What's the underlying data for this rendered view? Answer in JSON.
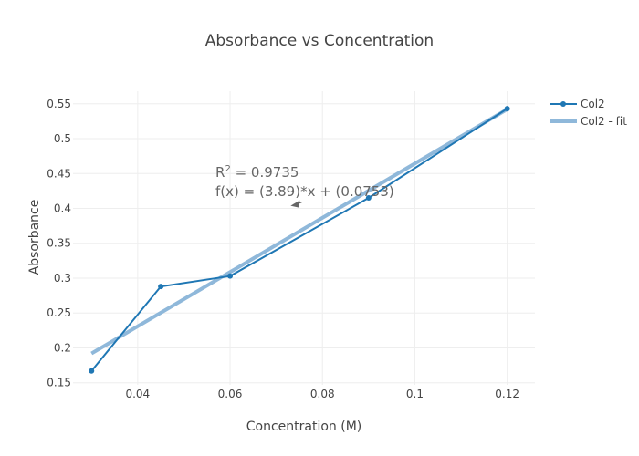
{
  "chart_data": {
    "type": "line",
    "title": "Absorbance vs Concentration",
    "xlabel": "Concentration (M)",
    "ylabel": "Absorbance",
    "xlim": [
      0.026,
      0.126
    ],
    "ylim": [
      0.147,
      0.568
    ],
    "x_ticks": [
      0.04,
      0.06,
      0.08,
      0.1,
      0.12
    ],
    "x_tick_labels": [
      "0.04",
      "0.06",
      "0.08",
      "0.1",
      "0.12"
    ],
    "y_ticks": [
      0.15,
      0.2,
      0.25,
      0.3,
      0.35,
      0.4,
      0.45,
      0.5,
      0.55
    ],
    "y_tick_labels": [
      "0.15",
      "0.2",
      "0.25",
      "0.3",
      "0.35",
      "0.4",
      "0.45",
      "0.5",
      "0.55"
    ],
    "grid": true,
    "legend_position": "top-right",
    "series": [
      {
        "name": "Col2",
        "mode": "lines+markers",
        "color": "#1f77b4",
        "x": [
          0.03,
          0.045,
          0.06,
          0.09,
          0.12
        ],
        "y": [
          0.167,
          0.288,
          0.303,
          0.415,
          0.543
        ]
      },
      {
        "name": "Col2 - fit",
        "mode": "lines",
        "color": "#8fb8da",
        "x": [
          0.03,
          0.12
        ],
        "y": [
          0.192,
          0.5421
        ]
      }
    ],
    "annotation": {
      "r2_prefix": "R",
      "r2_sup": "2",
      "r2_value": " = 0.9735",
      "equation": "f(x) = (3.89)*x + (0.0753)",
      "arrow_to": {
        "x": 0.0735,
        "y": 0.405
      }
    }
  }
}
